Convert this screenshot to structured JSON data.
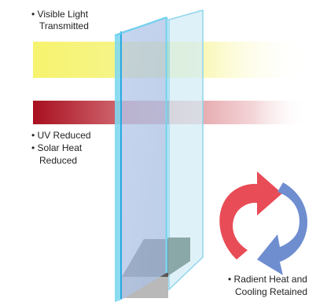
{
  "labels": {
    "visible_light": [
      "• Visible Light",
      "Transmitted"
    ],
    "uv_solar": [
      "• UV Reduced",
      "• Solar Heat",
      "Reduced"
    ],
    "radiant": [
      "• Radient Heat and",
      "Cooling Retained"
    ]
  },
  "colors": {
    "visible_band": "#f6f36e",
    "uv_band": "#b01424",
    "arrow_red": "#e84c56",
    "arrow_blue": "#6f8ed0",
    "glass_front": "#a9d8ec",
    "glass_back": "#c9e8f3",
    "glass_edge": "#56c6e8",
    "spacer_dark": "#565656",
    "spacer_light": "#b9b9b9",
    "spacer_side": "#8aa8a8"
  }
}
